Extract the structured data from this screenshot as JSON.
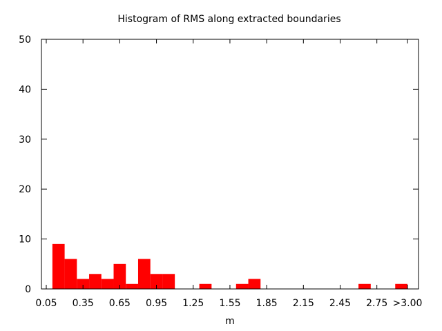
{
  "chart_data": {
    "type": "bar",
    "title": "Histogram of RMS along extracted boundaries",
    "xlabel": "m",
    "ylabel": "",
    "ylim": [
      0,
      50
    ],
    "xlim": [
      0.0,
      3.1
    ],
    "bin_width": 0.1,
    "y_ticks": [
      0,
      10,
      20,
      30,
      40,
      50
    ],
    "x_ticks": [
      {
        "value": 0.05,
        "label": "0.05"
      },
      {
        "value": 0.35,
        "label": "0.35"
      },
      {
        "value": 0.65,
        "label": "0.65"
      },
      {
        "value": 0.95,
        "label": "0.95"
      },
      {
        "value": 1.25,
        "label": "1.25"
      },
      {
        "value": 1.55,
        "label": "1.55"
      },
      {
        "value": 1.85,
        "label": "1.85"
      },
      {
        "value": 2.15,
        "label": "2.15"
      },
      {
        "value": 2.45,
        "label": "2.45"
      },
      {
        "value": 2.75,
        "label": "2.75"
      },
      {
        "value": 3.0,
        "label": ">3.00"
      }
    ],
    "categories": [
      "0.15",
      "0.20",
      "0.25",
      "0.30",
      "0.35",
      "0.40",
      "0.45",
      "0.50",
      "0.55",
      "0.60",
      "0.65",
      "0.70",
      "0.75",
      "0.80",
      "0.85",
      "0.90",
      "0.95",
      "1.00",
      "1.05",
      "1.10",
      "1.15",
      "1.20",
      "1.25",
      "1.30",
      "1.35",
      "1.40",
      "1.45",
      "1.50",
      "1.55",
      "1.60",
      "1.65",
      "1.70",
      "1.75",
      "1.80",
      "1.85",
      "1.90",
      "1.95",
      "2.00",
      "2.05",
      "2.10",
      "2.15",
      "2.20",
      "2.25",
      "2.30",
      "2.35",
      "2.40",
      "2.45",
      "2.50",
      "2.55",
      "2.60",
      "2.65",
      "2.70",
      "2.75",
      "2.80",
      "2.85",
      "2.90"
    ],
    "bars": [
      {
        "x": 0.15,
        "value": 9
      },
      {
        "x": 0.25,
        "value": 6
      },
      {
        "x": 0.35,
        "value": 2
      },
      {
        "x": 0.45,
        "value": 3
      },
      {
        "x": 0.55,
        "value": 2
      },
      {
        "x": 0.65,
        "value": 5
      },
      {
        "x": 0.75,
        "value": 1
      },
      {
        "x": 0.85,
        "value": 6
      },
      {
        "x": 0.95,
        "value": 3
      },
      {
        "x": 1.05,
        "value": 3
      },
      {
        "x": 1.35,
        "value": 1
      },
      {
        "x": 1.65,
        "value": 1
      },
      {
        "x": 1.75,
        "value": 2
      },
      {
        "x": 2.65,
        "value": 1
      },
      {
        "x": 2.95,
        "value": 1
      }
    ],
    "bar_color": "#ff0000",
    "grid": false,
    "legend": "none"
  }
}
